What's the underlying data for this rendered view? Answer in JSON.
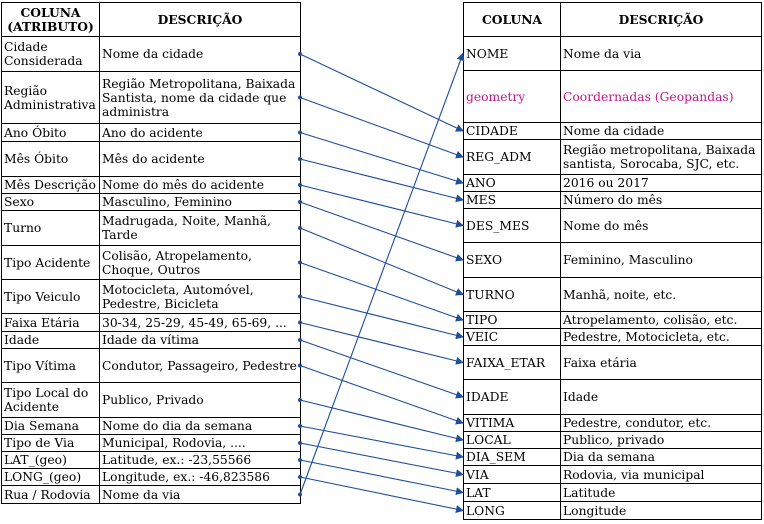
{
  "left_table": {
    "headers": [
      "COLUNA (ATRIBUTO)",
      "DESCRIÇÃO"
    ],
    "rows": [
      [
        "Cidade Considerada",
        "Nome da cidade"
      ],
      [
        "Região Administrativa",
        "Região Metropolitana, Baixada Santista, nome da cidade que administra"
      ],
      [
        "Ano Óbito",
        "Ano do acidente"
      ],
      [
        "Mês Óbito",
        "Mês do acidente"
      ],
      [
        "Mês Descrição",
        "Nome do mês do acidente"
      ],
      [
        "Sexo",
        "Masculino, Feminino"
      ],
      [
        "Turno",
        "Madrugada, Noite, Manhã, Tarde"
      ],
      [
        "Tipo Acidente",
        "Colisão, Atropelamento, Choque, Outros"
      ],
      [
        "Tipo Veiculo",
        "Motocicleta, Automóvel, Pedestre, Bicicleta"
      ],
      [
        "Faixa Etária",
        "30-34, 25-29, 45-49, 65-69, ..."
      ],
      [
        "Idade",
        "Idade da vítima"
      ],
      [
        "Tipo Vítima",
        "Condutor, Passageiro, Pedestre"
      ],
      [
        "Tipo Local do Acidente",
        "Publico, Privado"
      ],
      [
        "Dia Semana",
        "Nome do dia da semana"
      ],
      [
        "Tipo de Via",
        "Municipal, Rodovia, ...."
      ],
      [
        "LAT_(geo)",
        "Latitude, ex.: -23,55566"
      ],
      [
        "LONG_(geo)",
        "Longitude, ex.: -46,823586"
      ],
      [
        "Rua / Rodovia",
        "Nome da via"
      ]
    ]
  },
  "right_table": {
    "headers": [
      "COLUNA",
      "DESCRIÇÃO"
    ],
    "rows": [
      [
        "NOME",
        "Nome da via"
      ],
      [
        "geometry",
        "Coordernadas (Geopandas)"
      ],
      [
        "CIDADE",
        "Nome da cidade"
      ],
      [
        "REG_ADM",
        "Região metropolitana, Baixada santista, Sorocaba, SJC, etc."
      ],
      [
        "ANO",
        "2016 ou 2017"
      ],
      [
        "MES",
        "Número do mês"
      ],
      [
        "DES_MES",
        "Nome do mês"
      ],
      [
        "SEXO",
        "Feminino, Masculino"
      ],
      [
        "TURNO",
        "Manhã, noite, etc."
      ],
      [
        "TIPO",
        "Atropelamento, colisão, etc."
      ],
      [
        "VEIC",
        "Pedestre, Motocicleta, etc."
      ],
      [
        "FAIXA_ETAR",
        "Faixa etária"
      ],
      [
        "IDADE",
        "Idade"
      ],
      [
        "VITIMA",
        "Pedestre, condutor, etc."
      ],
      [
        "LOCAL",
        "Publico, privado"
      ],
      [
        "DIA_SEM",
        "Dia da semana"
      ],
      [
        "VIA",
        "Rodovia, via municipal"
      ],
      [
        "LAT",
        "Latitude"
      ],
      [
        "LONG",
        "Longitude"
      ]
    ],
    "highlight_color": "#c2168c",
    "highlight_row": 1
  },
  "connections": [
    [
      0,
      2
    ],
    [
      1,
      3
    ],
    [
      2,
      4
    ],
    [
      3,
      5
    ],
    [
      4,
      6
    ],
    [
      5,
      7
    ],
    [
      6,
      8
    ],
    [
      7,
      9
    ],
    [
      8,
      10
    ],
    [
      9,
      11
    ],
    [
      10,
      12
    ],
    [
      11,
      13
    ],
    [
      12,
      14
    ],
    [
      13,
      15
    ],
    [
      14,
      16
    ],
    [
      15,
      17
    ],
    [
      16,
      18
    ],
    [
      17,
      0
    ]
  ],
  "arrow_color": "#1f4e9c"
}
